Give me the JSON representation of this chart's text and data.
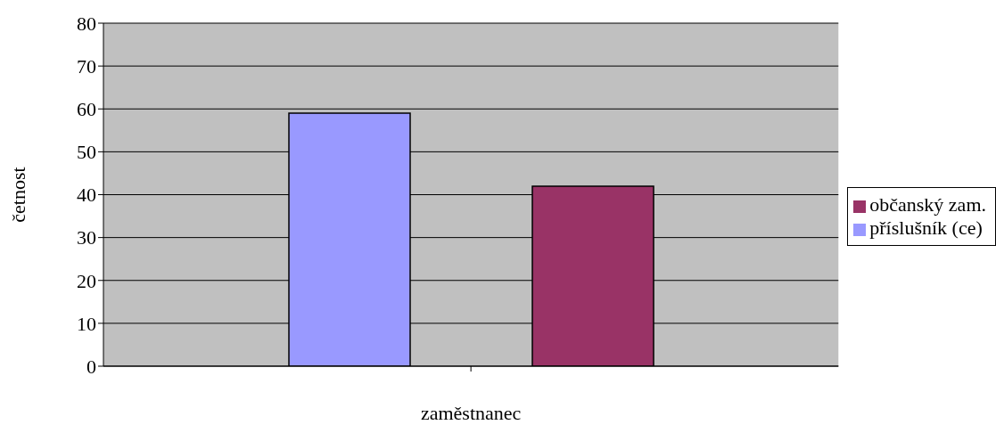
{
  "chart_data": {
    "type": "bar",
    "xlabel": "zaměstnanec",
    "ylabel": "četnost",
    "categories": [
      null
    ],
    "series": [
      {
        "name": "příslušník (ce)",
        "color": "#9999ff",
        "values": [
          59
        ]
      },
      {
        "name": "občanský zam.",
        "color": "#993366",
        "values": [
          42
        ]
      }
    ],
    "ylim": [
      0,
      80
    ],
    "yticks": [
      0,
      10,
      20,
      30,
      40,
      50,
      60,
      70,
      80
    ],
    "grid": "y",
    "legend": "right"
  }
}
